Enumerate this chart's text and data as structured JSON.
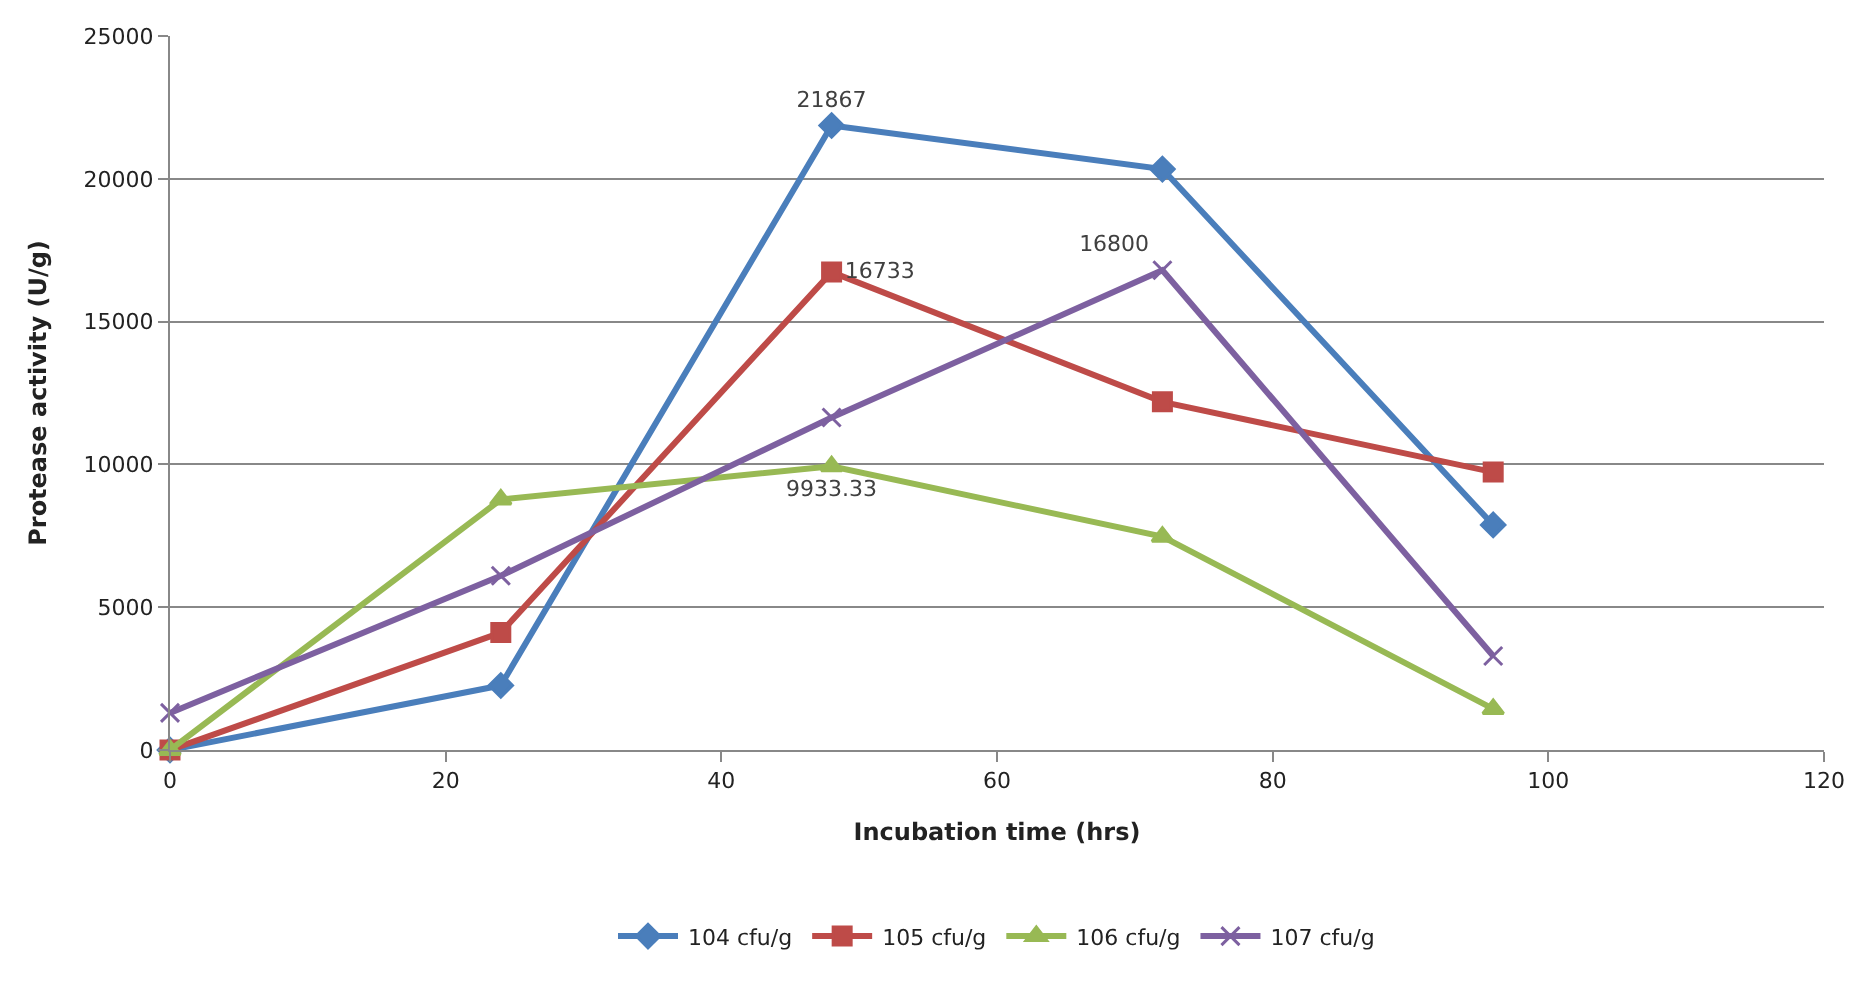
{
  "chart_data": {
    "type": "line",
    "xlabel": "Incubation time (hrs)",
    "ylabel": "Protease activity (U/g)",
    "x": [
      0,
      24,
      48,
      72,
      96
    ],
    "xlim": [
      0,
      120
    ],
    "xticks": [
      0,
      20,
      40,
      60,
      80,
      100,
      120
    ],
    "ylim": [
      0,
      25000
    ],
    "yticks": [
      0,
      5000,
      10000,
      15000,
      20000,
      25000
    ],
    "grid": "y",
    "legend": "bottom",
    "series": [
      {
        "name": "104 cfu/g",
        "color": "#4a7ebb",
        "marker": "diamond",
        "values": [
          0,
          2260,
          21867,
          20340,
          7880
        ],
        "value_labels": [
          null,
          null,
          "21867",
          null,
          null
        ]
      },
      {
        "name": "105 cfu/g",
        "color": "#be4b48",
        "marker": "square",
        "values": [
          0,
          4110,
          16733,
          12190,
          9730
        ],
        "value_labels": [
          null,
          null,
          "16733",
          null,
          null
        ]
      },
      {
        "name": "106 cfu/g",
        "color": "#98b954",
        "marker": "triangle",
        "values": [
          0,
          8770,
          9933.33,
          7470,
          1440
        ],
        "value_labels": [
          null,
          null,
          "9933.33",
          null,
          null
        ]
      },
      {
        "name": "107 cfu/g",
        "color": "#7d60a0",
        "marker": "cross",
        "values": [
          1300,
          6100,
          11640,
          16800,
          3290
        ],
        "value_labels": [
          null,
          null,
          null,
          "16800",
          null
        ]
      }
    ]
  }
}
